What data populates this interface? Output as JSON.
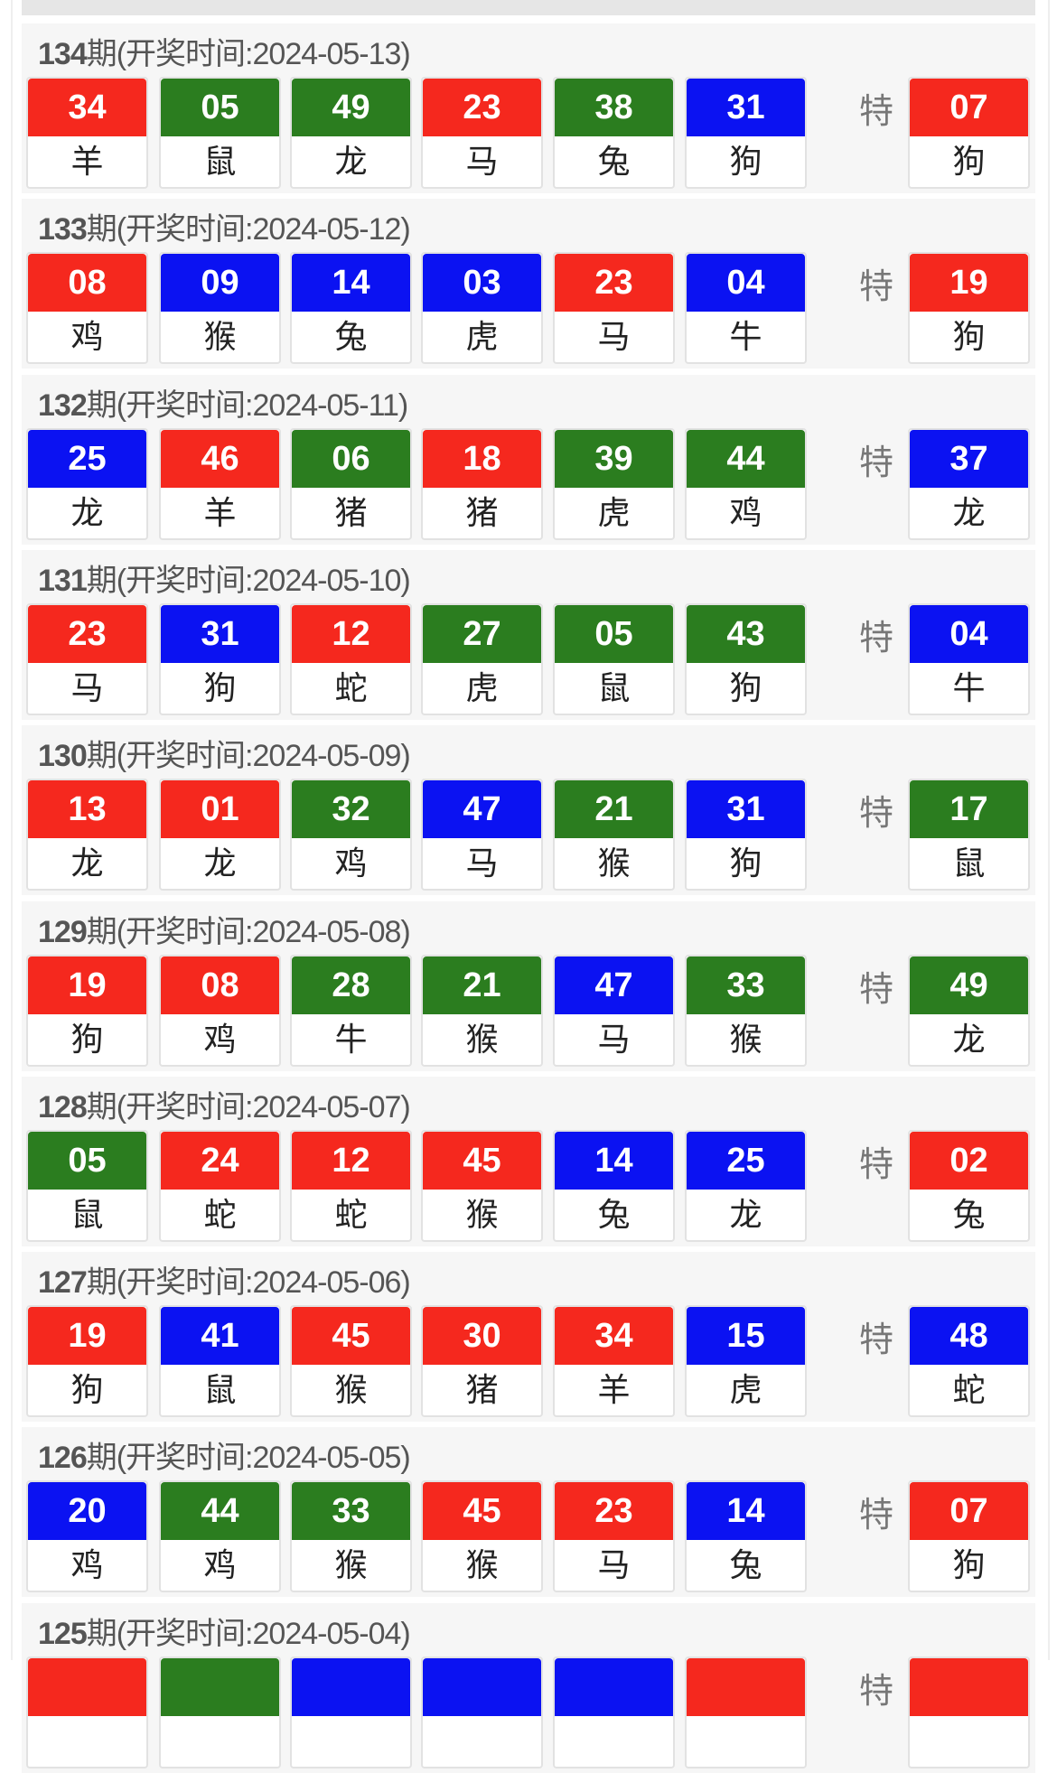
{
  "colors": {
    "red": "#f5281e",
    "green": "#2b7d1f",
    "blue": "#0b12f2"
  },
  "special_label": "特",
  "header_prefix_suffix": "期",
  "header_time_label": "(开奖时间:",
  "draws": [
    {
      "issue": "134",
      "date": "2024-05-13",
      "balls": [
        {
          "n": "34",
          "z": "羊",
          "c": "red"
        },
        {
          "n": "05",
          "z": "鼠",
          "c": "green"
        },
        {
          "n": "49",
          "z": "龙",
          "c": "green"
        },
        {
          "n": "23",
          "z": "马",
          "c": "red"
        },
        {
          "n": "38",
          "z": "兔",
          "c": "green"
        },
        {
          "n": "31",
          "z": "狗",
          "c": "blue"
        }
      ],
      "special": {
        "n": "07",
        "z": "狗",
        "c": "red"
      }
    },
    {
      "issue": "133",
      "date": "2024-05-12",
      "balls": [
        {
          "n": "08",
          "z": "鸡",
          "c": "red"
        },
        {
          "n": "09",
          "z": "猴",
          "c": "blue"
        },
        {
          "n": "14",
          "z": "兔",
          "c": "blue"
        },
        {
          "n": "03",
          "z": "虎",
          "c": "blue"
        },
        {
          "n": "23",
          "z": "马",
          "c": "red"
        },
        {
          "n": "04",
          "z": "牛",
          "c": "blue"
        }
      ],
      "special": {
        "n": "19",
        "z": "狗",
        "c": "red"
      }
    },
    {
      "issue": "132",
      "date": "2024-05-11",
      "balls": [
        {
          "n": "25",
          "z": "龙",
          "c": "blue"
        },
        {
          "n": "46",
          "z": "羊",
          "c": "red"
        },
        {
          "n": "06",
          "z": "猪",
          "c": "green"
        },
        {
          "n": "18",
          "z": "猪",
          "c": "red"
        },
        {
          "n": "39",
          "z": "虎",
          "c": "green"
        },
        {
          "n": "44",
          "z": "鸡",
          "c": "green"
        }
      ],
      "special": {
        "n": "37",
        "z": "龙",
        "c": "blue"
      }
    },
    {
      "issue": "131",
      "date": "2024-05-10",
      "balls": [
        {
          "n": "23",
          "z": "马",
          "c": "red"
        },
        {
          "n": "31",
          "z": "狗",
          "c": "blue"
        },
        {
          "n": "12",
          "z": "蛇",
          "c": "red"
        },
        {
          "n": "27",
          "z": "虎",
          "c": "green"
        },
        {
          "n": "05",
          "z": "鼠",
          "c": "green"
        },
        {
          "n": "43",
          "z": "狗",
          "c": "green"
        }
      ],
      "special": {
        "n": "04",
        "z": "牛",
        "c": "blue"
      }
    },
    {
      "issue": "130",
      "date": "2024-05-09",
      "balls": [
        {
          "n": "13",
          "z": "龙",
          "c": "red"
        },
        {
          "n": "01",
          "z": "龙",
          "c": "red"
        },
        {
          "n": "32",
          "z": "鸡",
          "c": "green"
        },
        {
          "n": "47",
          "z": "马",
          "c": "blue"
        },
        {
          "n": "21",
          "z": "猴",
          "c": "green"
        },
        {
          "n": "31",
          "z": "狗",
          "c": "blue"
        }
      ],
      "special": {
        "n": "17",
        "z": "鼠",
        "c": "green"
      }
    },
    {
      "issue": "129",
      "date": "2024-05-08",
      "balls": [
        {
          "n": "19",
          "z": "狗",
          "c": "red"
        },
        {
          "n": "08",
          "z": "鸡",
          "c": "red"
        },
        {
          "n": "28",
          "z": "牛",
          "c": "green"
        },
        {
          "n": "21",
          "z": "猴",
          "c": "green"
        },
        {
          "n": "47",
          "z": "马",
          "c": "blue"
        },
        {
          "n": "33",
          "z": "猴",
          "c": "green"
        }
      ],
      "special": {
        "n": "49",
        "z": "龙",
        "c": "green"
      }
    },
    {
      "issue": "128",
      "date": "2024-05-07",
      "balls": [
        {
          "n": "05",
          "z": "鼠",
          "c": "green"
        },
        {
          "n": "24",
          "z": "蛇",
          "c": "red"
        },
        {
          "n": "12",
          "z": "蛇",
          "c": "red"
        },
        {
          "n": "45",
          "z": "猴",
          "c": "red"
        },
        {
          "n": "14",
          "z": "兔",
          "c": "blue"
        },
        {
          "n": "25",
          "z": "龙",
          "c": "blue"
        }
      ],
      "special": {
        "n": "02",
        "z": "兔",
        "c": "red"
      }
    },
    {
      "issue": "127",
      "date": "2024-05-06",
      "balls": [
        {
          "n": "19",
          "z": "狗",
          "c": "red"
        },
        {
          "n": "41",
          "z": "鼠",
          "c": "blue"
        },
        {
          "n": "45",
          "z": "猴",
          "c": "red"
        },
        {
          "n": "30",
          "z": "猪",
          "c": "red"
        },
        {
          "n": "34",
          "z": "羊",
          "c": "red"
        },
        {
          "n": "15",
          "z": "虎",
          "c": "blue"
        }
      ],
      "special": {
        "n": "48",
        "z": "蛇",
        "c": "blue"
      }
    },
    {
      "issue": "126",
      "date": "2024-05-05",
      "balls": [
        {
          "n": "20",
          "z": "鸡",
          "c": "blue"
        },
        {
          "n": "44",
          "z": "鸡",
          "c": "green"
        },
        {
          "n": "33",
          "z": "猴",
          "c": "green"
        },
        {
          "n": "45",
          "z": "猴",
          "c": "red"
        },
        {
          "n": "23",
          "z": "马",
          "c": "red"
        },
        {
          "n": "14",
          "z": "兔",
          "c": "blue"
        }
      ],
      "special": {
        "n": "07",
        "z": "狗",
        "c": "red"
      }
    },
    {
      "issue": "125",
      "date": "2024-05-04",
      "balls": [
        {
          "c": "red"
        },
        {
          "c": "green"
        },
        {
          "c": "blue"
        },
        {
          "c": "blue"
        },
        {
          "c": "blue"
        },
        {
          "c": "red"
        }
      ],
      "special": {
        "c": "red"
      }
    }
  ]
}
